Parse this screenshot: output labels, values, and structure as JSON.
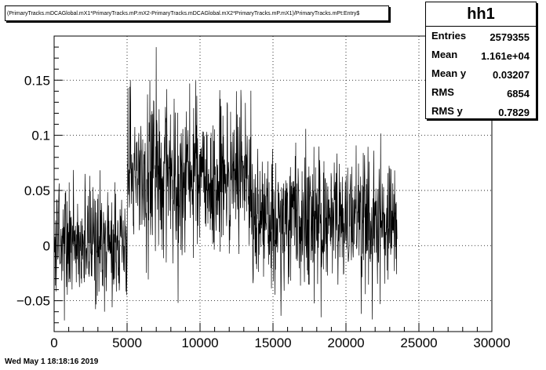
{
  "title": "(PrimaryTracks.mDCAGlobal.mX1*PrimaryTracks.mP.mX2-PrimaryTracks.mDCAGlobal.mX2*PrimaryTracks.mP.mX1)/PrimaryTracks.mPt:Entry$",
  "footer": "Wed May  1 18:18:16 2019",
  "stats": {
    "name": "hh1",
    "rows": [
      {
        "label": "Entries",
        "value": "2579355"
      },
      {
        "label": "Mean",
        "value": "1.161e+04"
      },
      {
        "label": "Mean y",
        "value": "0.03207"
      },
      {
        "label": "RMS",
        "value": "6854"
      },
      {
        "label": "RMS y",
        "value": "0.7829"
      }
    ]
  },
  "chart_data": {
    "type": "line",
    "xlim": [
      0,
      30000
    ],
    "ylim": [
      -0.078,
      0.19
    ],
    "x_ticks": [
      0,
      5000,
      10000,
      15000,
      20000,
      25000,
      30000
    ],
    "x_tick_labels": [
      "0",
      "5000",
      "10000",
      "15000",
      "20000",
      "25000",
      "30000"
    ],
    "y_ticks": [
      -0.05,
      0,
      0.05,
      0.1,
      0.15
    ],
    "y_tick_labels": [
      "−0.05",
      "0",
      "0.05",
      "0.1",
      "0.15"
    ],
    "grid": true,
    "series": [
      {
        "x_start": 0,
        "x_end": 23500,
        "segments": [
          {
            "x_from": 0,
            "x_to": 5000,
            "mean": 0.003,
            "spread": 0.028
          },
          {
            "x_from": 5000,
            "x_to": 10000,
            "mean": 0.062,
            "spread": 0.035
          },
          {
            "x_from": 10000,
            "x_to": 13500,
            "mean": 0.058,
            "spread": 0.033
          },
          {
            "x_from": 13500,
            "x_to": 23500,
            "mean": 0.02,
            "spread": 0.03
          }
        ],
        "peaks": [
          {
            "x": 7000,
            "y": 0.18
          },
          {
            "x": 9300,
            "y": 0.147
          },
          {
            "x": 6400,
            "y": 0.137
          },
          {
            "x": 12500,
            "y": 0.14
          }
        ],
        "dips": [
          {
            "x": 8500,
            "y": -0.052
          },
          {
            "x": 21800,
            "y": -0.067
          },
          {
            "x": 18300,
            "y": -0.065
          }
        ]
      }
    ]
  }
}
